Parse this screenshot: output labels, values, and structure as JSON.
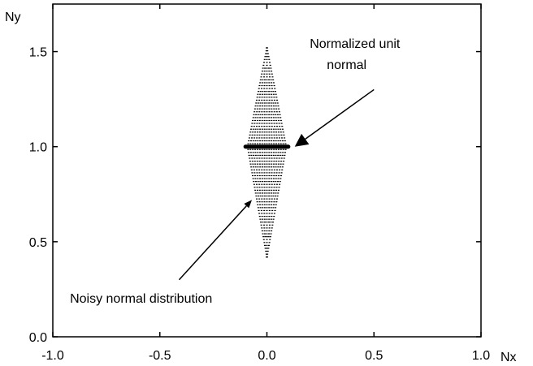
{
  "chart_data": {
    "type": "scatter",
    "xlabel": "Nx",
    "ylabel": "Ny",
    "xlim": [
      -1.0,
      1.0
    ],
    "ylim": [
      0.0,
      1.75
    ],
    "x_ticks": [
      -1.0,
      -0.5,
      0.0,
      0.5,
      1.0
    ],
    "y_ticks": [
      0.0,
      0.5,
      1.0,
      1.5
    ],
    "x_tick_labels": [
      "-1.0",
      "-0.5",
      "0.0",
      "0.5",
      "1.0"
    ],
    "y_tick_labels": [
      "0.0",
      "0.5",
      "1.0",
      "1.5"
    ],
    "grid": false,
    "series": [
      {
        "role": "noisy-distribution",
        "shape": "diamond",
        "center": [
          0.0,
          1.0
        ],
        "x_range": [
          -0.09,
          0.09
        ],
        "y_range": [
          0.42,
          1.52
        ]
      },
      {
        "role": "normalized-unit-normal",
        "points": [
          [
            -0.1,
            1.0
          ],
          [
            0.1,
            1.0
          ]
        ]
      }
    ],
    "annotations": [
      {
        "id": "normalized-unit-normal",
        "lines": [
          "Normalized unit",
          "normal"
        ],
        "text_pos": [
          0.2,
          1.52
        ],
        "arrow_from": [
          0.5,
          1.3
        ],
        "arrow_to": [
          0.13,
          1.0
        ]
      },
      {
        "id": "noisy-normal-distribution",
        "lines": [
          "Noisy normal distribution"
        ],
        "text_pos": [
          -0.92,
          0.18
        ],
        "arrow_from": [
          -0.41,
          0.3
        ],
        "arrow_to": [
          -0.07,
          0.72
        ]
      }
    ]
  }
}
